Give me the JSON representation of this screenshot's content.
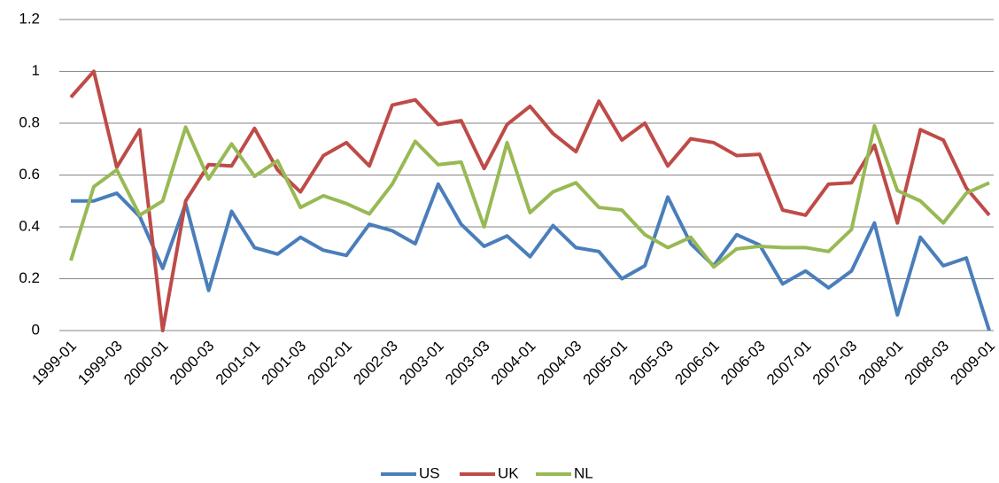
{
  "chart_data": {
    "type": "line",
    "categories": [
      "1999-01",
      null,
      "1999-03",
      null,
      "2000-01",
      null,
      "2000-03",
      null,
      "2001-01",
      null,
      "2001-03",
      null,
      "2002-01",
      null,
      "2002-03",
      null,
      "2003-01",
      null,
      "2003-03",
      null,
      "2004-01",
      null,
      "2004-03",
      null,
      "2005-01",
      null,
      "2005-03",
      null,
      "2006-01",
      null,
      "2006-03",
      null,
      "2007-01",
      null,
      "2007-03",
      null,
      "2008-01",
      null,
      "2008-03",
      null,
      "2009-01"
    ],
    "series": [
      {
        "name": "US",
        "color": "#4a7ebb",
        "values": [
          0.5,
          0.5,
          0.53,
          0.44,
          0.24,
          0.49,
          0.155,
          0.46,
          0.32,
          0.295,
          0.36,
          0.31,
          0.29,
          0.41,
          0.385,
          0.335,
          0.565,
          0.41,
          0.325,
          0.365,
          0.285,
          0.405,
          0.32,
          0.305,
          0.2,
          0.25,
          0.515,
          0.335,
          0.25,
          0.37,
          0.33,
          0.18,
          0.23,
          0.165,
          0.23,
          0.415,
          0.06,
          0.36,
          0.25,
          0.28,
          0
        ]
      },
      {
        "name": "UK",
        "color": "#be4b48",
        "values": [
          0.9,
          1.0,
          0.63,
          0.775,
          0,
          0.5,
          0.64,
          0.635,
          0.78,
          0.62,
          0.535,
          0.675,
          0.725,
          0.635,
          0.87,
          0.89,
          0.795,
          0.81,
          0.625,
          0.795,
          0.865,
          0.76,
          0.69,
          0.885,
          0.735,
          0.8,
          0.635,
          0.74,
          0.725,
          0.675,
          0.68,
          0.465,
          0.445,
          0.565,
          0.57,
          0.715,
          0.415,
          0.775,
          0.735,
          0.55,
          0.445
        ]
      },
      {
        "name": "NL",
        "color": "#98b954",
        "values": [
          0.27,
          0.555,
          0.62,
          0.445,
          0.5,
          0.785,
          0.585,
          0.72,
          0.595,
          0.655,
          0.475,
          0.52,
          0.49,
          0.45,
          0.565,
          0.73,
          0.64,
          0.65,
          0.4,
          0.725,
          0.455,
          0.535,
          0.57,
          0.475,
          0.465,
          0.37,
          0.32,
          0.36,
          0.245,
          0.315,
          0.325,
          0.32,
          0.32,
          0.305,
          0.39,
          0.79,
          0.54,
          0.5,
          0.415,
          0.53,
          0.57
        ]
      }
    ],
    "ylim": [
      0,
      1.2
    ],
    "yticks": [
      0,
      0.2,
      0.4,
      0.6,
      0.8,
      1,
      1.2
    ],
    "grid": true,
    "legend": "bottom"
  }
}
